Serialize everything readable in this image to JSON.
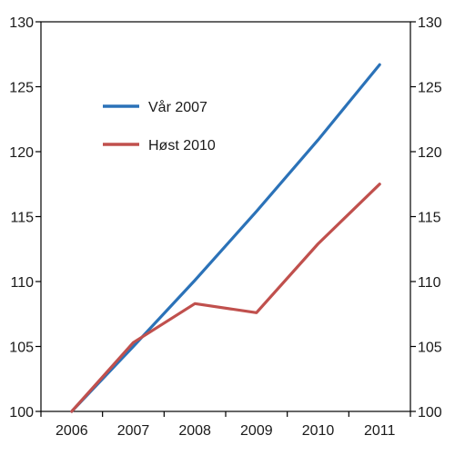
{
  "chart_data": {
    "type": "line",
    "title": "",
    "xlabel": "",
    "ylabel": "",
    "x": [
      "2006",
      "2007",
      "2008",
      "2009",
      "2010",
      "2011"
    ],
    "ylim": [
      100,
      130
    ],
    "yticks": [
      100,
      105,
      110,
      115,
      120,
      125,
      130
    ],
    "right_axis": true,
    "grid": false,
    "legend_position": "upper-left, inside plot",
    "series": [
      {
        "name": "Vår 2007",
        "color": "#2b72b8",
        "values": [
          100,
          105.0,
          110.1,
          115.4,
          120.9,
          126.7
        ]
      },
      {
        "name": "Høst 2010",
        "color": "#c0504d",
        "values": [
          100,
          105.3,
          108.3,
          107.6,
          112.9,
          117.5
        ]
      }
    ]
  }
}
